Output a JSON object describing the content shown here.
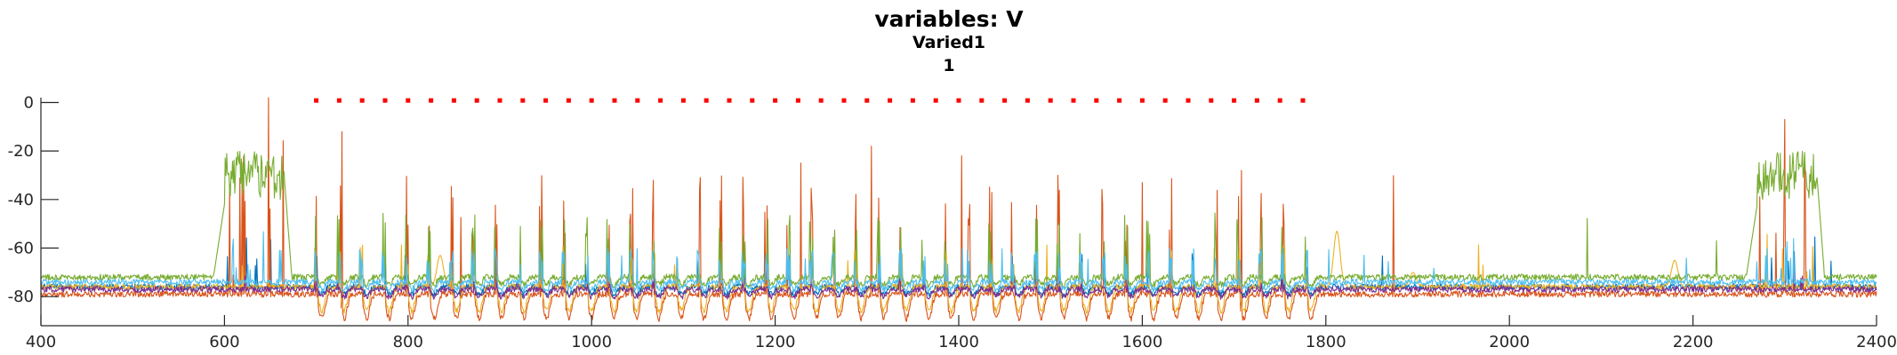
{
  "chart_data": {
    "type": "line",
    "title": "variables: V",
    "subtitle": "Varied1",
    "subtitle2": "1",
    "xlabel": "",
    "ylabel": "",
    "xlim": [
      400,
      2400
    ],
    "ylim": [
      -92,
      2
    ],
    "xticks": [
      400,
      600,
      800,
      1000,
      1200,
      1400,
      1600,
      1800,
      2000,
      2200,
      2400
    ],
    "yticks": [
      0,
      -20,
      -40,
      -60,
      -80
    ],
    "grid": false,
    "legend": "none",
    "stimulus_markers": {
      "y": 1,
      "x_start": 700,
      "x_end": 1780,
      "step": 25,
      "color": "#ff0000"
    },
    "series": [
      {
        "color": "#0072BD",
        "baseline": -76,
        "spike_peak": -62,
        "spike_density": 0.6,
        "burst_peak": -55,
        "seed": 11
      },
      {
        "color": "#D95319",
        "baseline": -79,
        "spike_peak": -30,
        "spike_density": 0.9,
        "burst_peak": -10,
        "tall_spikes": [
          [
            648,
            2
          ],
          [
            728,
            -12
          ],
          [
            1228,
            -25
          ],
          [
            1305,
            -18
          ],
          [
            1403,
            -22
          ],
          [
            1508,
            -30
          ],
          [
            1600,
            -33
          ],
          [
            1708,
            -28
          ],
          [
            2300,
            -7
          ]
        ],
        "seed": 23
      },
      {
        "color": "#EDB120",
        "baseline": -76,
        "spike_peak": -58,
        "spike_density": 0.5,
        "burst_peak": -48,
        "humps": [
          [
            835,
            -63
          ],
          [
            1812,
            -53
          ],
          [
            1895,
            -70
          ],
          [
            2180,
            -65
          ]
        ],
        "seed": 37
      },
      {
        "color": "#7E2F8E",
        "baseline": -77,
        "spike_peak": -72,
        "spike_density": 0.3,
        "burst_peak": -70,
        "seed": 41
      },
      {
        "color": "#77AC30",
        "baseline": -72,
        "spike_peak": -45,
        "spike_density": 0.8,
        "burst_peak": -22,
        "bursts": [
          [
            600,
            665
          ],
          [
            2270,
            2335
          ]
        ],
        "seed": 53
      },
      {
        "color": "#4DBEEE",
        "baseline": -74,
        "spike_peak": -60,
        "spike_density": 1.5,
        "burst_peak": -50,
        "seed": 67
      }
    ]
  }
}
